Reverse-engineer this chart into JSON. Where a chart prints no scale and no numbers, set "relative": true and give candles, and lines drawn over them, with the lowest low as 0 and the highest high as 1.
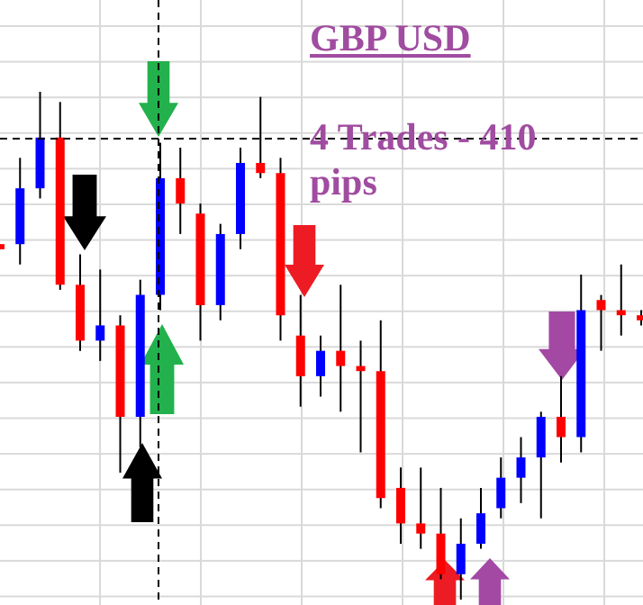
{
  "chart_data": {
    "type": "candlestick",
    "title": "GBP USD",
    "annotations": [
      "4 Trades - 410 pips"
    ],
    "relative": true,
    "categories": [
      null,
      null,
      null,
      null,
      null,
      null,
      null,
      null,
      null,
      null,
      null,
      null,
      null,
      null,
      null,
      null,
      null,
      null,
      null,
      null,
      null,
      null,
      null,
      null,
      null,
      null,
      null,
      null,
      null,
      null,
      null,
      null,
      null
    ],
    "ohlc": [
      [
        0.7,
        0.7,
        0.69,
        0.69
      ],
      [
        0.7,
        0.87,
        0.66,
        0.81
      ],
      [
        0.81,
        1.0,
        0.79,
        0.91
      ],
      [
        0.91,
        0.98,
        0.61,
        0.62
      ],
      [
        0.62,
        0.68,
        0.49,
        0.51
      ],
      [
        0.51,
        0.65,
        0.47,
        0.54
      ],
      [
        0.54,
        0.56,
        0.25,
        0.36
      ],
      [
        0.36,
        0.63,
        0.3,
        0.6
      ],
      [
        0.6,
        0.9,
        0.57,
        0.83
      ],
      [
        0.83,
        0.89,
        0.72,
        0.78
      ],
      [
        0.76,
        0.78,
        0.51,
        0.58
      ],
      [
        0.58,
        0.74,
        0.55,
        0.72
      ],
      [
        0.72,
        0.89,
        0.69,
        0.86
      ],
      [
        0.86,
        0.99,
        0.83,
        0.84
      ],
      [
        0.84,
        0.87,
        0.51,
        0.56
      ],
      [
        0.52,
        0.6,
        0.38,
        0.44
      ],
      [
        0.44,
        0.52,
        0.4,
        0.49
      ],
      [
        0.49,
        0.62,
        0.37,
        0.46
      ],
      [
        0.46,
        0.51,
        0.29,
        0.45
      ],
      [
        0.45,
        0.55,
        0.18,
        0.2
      ],
      [
        0.22,
        0.26,
        0.11,
        0.15
      ],
      [
        0.15,
        0.26,
        0.1,
        0.13
      ],
      [
        0.13,
        0.22,
        0.04,
        0.05
      ],
      [
        0.05,
        0.16,
        0.0,
        0.11
      ],
      [
        0.11,
        0.22,
        0.1,
        0.17
      ],
      [
        0.18,
        0.28,
        0.16,
        0.24
      ],
      [
        0.24,
        0.32,
        0.19,
        0.28
      ],
      [
        0.28,
        0.37,
        0.16,
        0.36
      ],
      [
        0.36,
        0.44,
        0.27,
        0.32
      ],
      [
        0.32,
        0.64,
        0.29,
        0.57
      ],
      [
        0.59,
        0.6,
        0.49,
        0.57
      ],
      [
        0.57,
        0.66,
        0.52,
        0.56
      ],
      [
        0.56,
        0.57,
        0.54,
        0.55
      ]
    ],
    "colors": [
      "#ff0000",
      "#0000ff",
      "#0000ff",
      "#ff0000",
      "#ff0000",
      "#0000ff",
      "#ff0000",
      "#0000ff",
      "#0000ff",
      "#ff0000",
      "#ff0000",
      "#0000ff",
      "#0000ff",
      "#ff0000",
      "#ff0000",
      "#ff0000",
      "#0000ff",
      "#ff0000",
      "#ff0000",
      "#ff0000",
      "#ff0000",
      "#ff0000",
      "#ff0000",
      "#0000ff",
      "#0000ff",
      "#0000ff",
      "#0000ff",
      "#0000ff",
      "#ff0000",
      "#0000ff",
      "#ff0000",
      "#ff0000",
      "#ff0000"
    ]
  }
}
